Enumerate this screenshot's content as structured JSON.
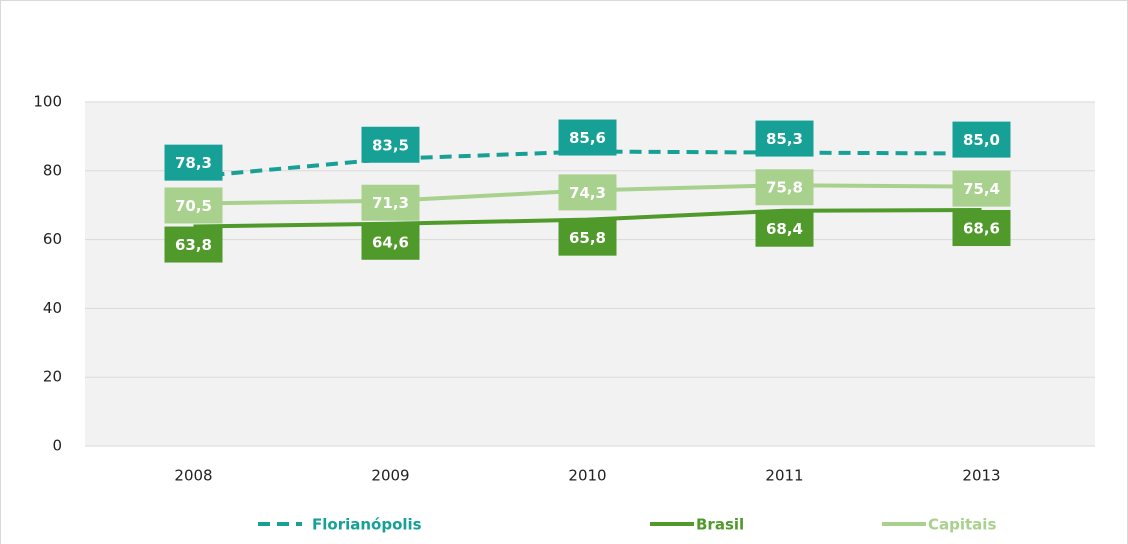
{
  "chart_data": {
    "type": "line",
    "categories": [
      "2008",
      "2009",
      "2010",
      "2011",
      "2013"
    ],
    "series": [
      {
        "name": "Florianópolis",
        "color": "#17a096",
        "dashed": true,
        "values": [
          78.3,
          83.5,
          85.6,
          85.3,
          85.0
        ],
        "value_labels": [
          "78,3",
          "83,5",
          "85,6",
          "85,3",
          "85,0"
        ]
      },
      {
        "name": "Brasil",
        "color": "#4f9a2b",
        "dashed": false,
        "values": [
          63.8,
          64.6,
          65.8,
          68.4,
          68.6
        ],
        "value_labels": [
          "63,8",
          "64,6",
          "65,8",
          "68,4",
          "68,6"
        ]
      },
      {
        "name": "Capitais",
        "color": "#a9d18e",
        "dashed": false,
        "values": [
          70.5,
          71.3,
          74.3,
          75.8,
          75.4
        ],
        "value_labels": [
          "70,5",
          "71,3",
          "74,3",
          "75,8",
          "75,4"
        ]
      }
    ],
    "ylim": [
      0,
      100
    ],
    "yticks": [
      0,
      20,
      40,
      60,
      80,
      100
    ],
    "grid": true,
    "legend": "bottom"
  }
}
